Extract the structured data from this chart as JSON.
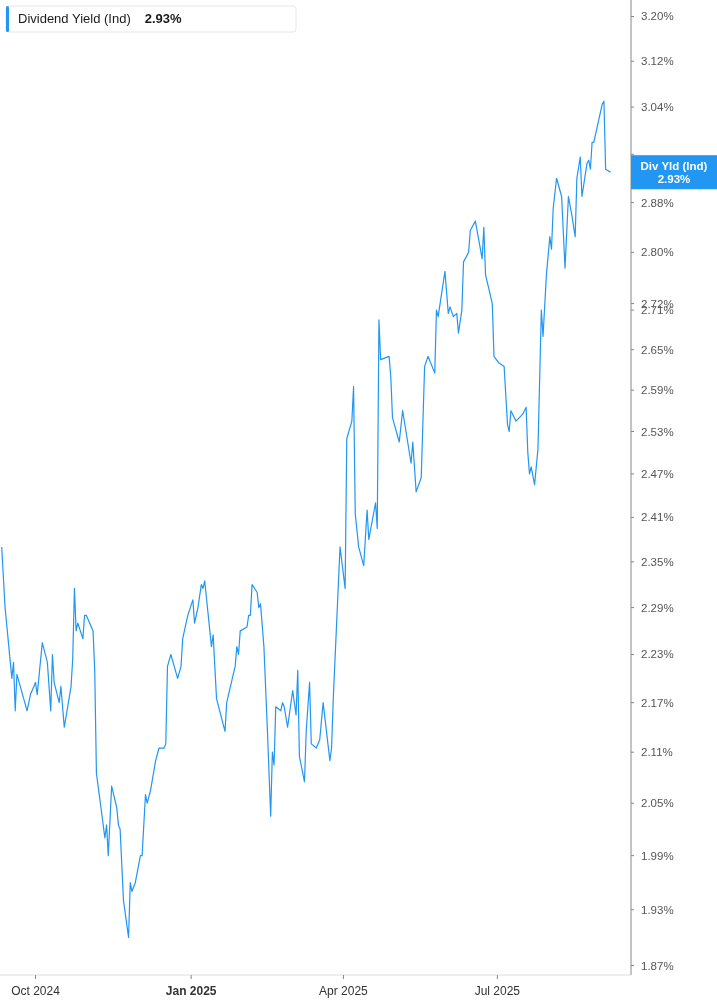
{
  "chart_data": {
    "type": "line",
    "log": true,
    "legend": "top left",
    "marker": "none",
    "line_style": "solid",
    "grid": false,
    "xlim": [
      "2024-09-10",
      "2025-09-18"
    ],
    "xticks": [
      {
        "value": "2024-10-01",
        "label": "Oct 2024"
      },
      {
        "value": "2025-01-01",
        "label": "Jan 2025"
      },
      {
        "value": "2025-04-01",
        "label": "Apr 2025"
      },
      {
        "value": "2025-07-01",
        "label": "Jul 2025"
      }
    ],
    "ylim": [
      1.86,
      3.23
    ],
    "yticks": [
      {
        "value": 3.2,
        "label": "3.20%"
      },
      {
        "value": 3.12,
        "label": "3.12%"
      },
      {
        "value": 3.04,
        "label": "3.04%"
      },
      {
        "value": 2.96,
        "label": null
      },
      {
        "value": 2.88,
        "label": "2.88%"
      },
      {
        "value": 2.8,
        "label": "2.80%"
      },
      {
        "value": 2.72,
        "label": "2.72%"
      },
      {
        "value": 2.71,
        "label": "2.71%"
      },
      {
        "value": 2.65,
        "label": "2.65%"
      },
      {
        "value": 2.59,
        "label": "2.59%"
      },
      {
        "value": 2.53,
        "label": "2.53%"
      },
      {
        "value": 2.47,
        "label": "2.47%"
      },
      {
        "value": 2.41,
        "label": "2.41%"
      },
      {
        "value": 2.35,
        "label": "2.35%"
      },
      {
        "value": 2.29,
        "label": "2.29%"
      },
      {
        "value": 2.23,
        "label": "2.23%"
      },
      {
        "value": 2.17,
        "label": "2.17%"
      },
      {
        "value": 2.11,
        "label": "2.11%"
      },
      {
        "value": 2.05,
        "label": "2.05%"
      },
      {
        "value": 1.99,
        "label": "1.99%"
      },
      {
        "value": 1.93,
        "label": "1.93%"
      },
      {
        "value": 1.87,
        "label": "1.87%"
      }
    ],
    "annotations": [
      "2.93%",
      "Div Yld (Ind)",
      "2.93%"
    ],
    "series": [
      {
        "name": "Dividend Yield (Ind)",
        "color": "#2196f3",
        "x": [
          "2024-09-11",
          "2024-09-13",
          "2024-09-17",
          "2024-09-18",
          "2024-09-19",
          "2024-09-20",
          "2024-09-24",
          "2024-09-26",
          "2024-09-28",
          "2024-10-01",
          "2024-10-02",
          "2024-10-05",
          "2024-10-08",
          "2024-10-10",
          "2024-10-11",
          "2024-10-12",
          "2024-10-15",
          "2024-10-16",
          "2024-10-18",
          "2024-10-22",
          "2024-10-23",
          "2024-10-24",
          "2024-10-25",
          "2024-10-26",
          "2024-10-29",
          "2024-10-30",
          "2024-10-31",
          "2024-11-04",
          "2024-11-05",
          "2024-11-06",
          "2024-11-08",
          "2024-11-11",
          "2024-11-12",
          "2024-11-13",
          "2024-11-15",
          "2024-11-18",
          "2024-11-19",
          "2024-11-20",
          "2024-11-22",
          "2024-11-25",
          "2024-11-26",
          "2024-11-27",
          "2024-11-29",
          "2024-12-02",
          "2024-12-03",
          "2024-12-05",
          "2024-12-06",
          "2024-12-08",
          "2024-12-11",
          "2024-12-13",
          "2024-12-16",
          "2024-12-17",
          "2024-12-18",
          "2024-12-20",
          "2024-12-22",
          "2024-12-24",
          "2024-12-26",
          "2024-12-27",
          "2024-12-30",
          "2025-01-02",
          "2025-01-03",
          "2025-01-05",
          "2025-01-07",
          "2025-01-08",
          "2025-01-09",
          "2025-01-13",
          "2025-01-14",
          "2025-01-16",
          "2025-01-21",
          "2025-01-22",
          "2025-01-27",
          "2025-01-28",
          "2025-01-29",
          "2025-01-30",
          "2025-02-03",
          "2025-02-04",
          "2025-02-05",
          "2025-02-06",
          "2025-02-09",
          "2025-02-10",
          "2025-02-11",
          "2025-02-13",
          "2025-02-15",
          "2025-02-17",
          "2025-02-18",
          "2025-02-19",
          "2025-02-20",
          "2025-02-23",
          "2025-02-24",
          "2025-02-25",
          "2025-02-27",
          "2025-03-02",
          "2025-03-04",
          "2025-03-05",
          "2025-03-06",
          "2025-03-09",
          "2025-03-10",
          "2025-03-12",
          "2025-03-13",
          "2025-03-16",
          "2025-03-18",
          "2025-03-20",
          "2025-03-24",
          "2025-03-25",
          "2025-03-26",
          "2025-03-30",
          "2025-04-02",
          "2025-04-03",
          "2025-04-06",
          "2025-04-07",
          "2025-04-08",
          "2025-04-10",
          "2025-04-13",
          "2025-04-15",
          "2025-04-16",
          "2025-04-20",
          "2025-04-21",
          "2025-04-22",
          "2025-04-23",
          "2025-04-28",
          "2025-04-29",
          "2025-04-30",
          "2025-05-04",
          "2025-05-06",
          "2025-05-08",
          "2025-05-11",
          "2025-05-12",
          "2025-05-14",
          "2025-05-17",
          "2025-05-19",
          "2025-05-21",
          "2025-05-25",
          "2025-05-26",
          "2025-05-27",
          "2025-05-31",
          "2025-06-02",
          "2025-06-03",
          "2025-06-05",
          "2025-06-07",
          "2025-06-08",
          "2025-06-10",
          "2025-06-11",
          "2025-06-14",
          "2025-06-15",
          "2025-06-18",
          "2025-06-22",
          "2025-06-23",
          "2025-06-24",
          "2025-06-28",
          "2025-06-29",
          "2025-07-02",
          "2025-07-05",
          "2025-07-07",
          "2025-07-08",
          "2025-07-09",
          "2025-07-12",
          "2025-07-14",
          "2025-07-16",
          "2025-07-18",
          "2025-07-19",
          "2025-07-20",
          "2025-07-21",
          "2025-07-23",
          "2025-07-25",
          "2025-07-27",
          "2025-07-28",
          "2025-07-30",
          "2025-08-01",
          "2025-08-02",
          "2025-08-03",
          "2025-08-05",
          "2025-08-08",
          "2025-08-10",
          "2025-08-12",
          "2025-08-14",
          "2025-08-16",
          "2025-08-17",
          "2025-08-19",
          "2025-08-20",
          "2025-08-23",
          "2025-08-24",
          "2025-08-25",
          "2025-08-26",
          "2025-08-27",
          "2025-09-01",
          "2025-09-02",
          "2025-09-03",
          "2025-09-06"
        ],
        "values": [
          2.37,
          2.29,
          2.2,
          2.22,
          2.16,
          2.205,
          2.175,
          2.16,
          2.18,
          2.195,
          2.18,
          2.245,
          2.22,
          2.16,
          2.23,
          2.195,
          2.17,
          2.19,
          2.14,
          2.19,
          2.225,
          2.315,
          2.26,
          2.27,
          2.25,
          2.28,
          2.28,
          2.26,
          2.21,
          2.085,
          2.055,
          2.01,
          2.025,
          1.99,
          2.07,
          2.045,
          2.025,
          2.02,
          1.94,
          1.9,
          1.96,
          1.95,
          1.96,
          1.99,
          1.99,
          2.06,
          2.05,
          2.065,
          2.1,
          2.115,
          2.115,
          2.12,
          2.215,
          2.23,
          2.215,
          2.2,
          2.215,
          2.25,
          2.28,
          2.3,
          2.27,
          2.29,
          2.32,
          2.315,
          2.325,
          2.24,
          2.255,
          2.175,
          2.135,
          2.17,
          2.215,
          2.24,
          2.23,
          2.26,
          2.265,
          2.28,
          2.28,
          2.32,
          2.31,
          2.29,
          2.295,
          2.24,
          2.14,
          2.035,
          2.11,
          2.095,
          2.165,
          2.16,
          2.17,
          2.165,
          2.14,
          2.185,
          2.155,
          2.21,
          2.105,
          2.075,
          2.135,
          2.195,
          2.12,
          2.115,
          2.125,
          2.17,
          2.1,
          2.115,
          2.175,
          2.37,
          2.315,
          2.52,
          2.545,
          2.595,
          2.415,
          2.37,
          2.345,
          2.42,
          2.38,
          2.43,
          2.395,
          2.695,
          2.635,
          2.64,
          2.61,
          2.55,
          2.515,
          2.56,
          2.53,
          2.485,
          2.515,
          2.445,
          2.465,
          2.625,
          2.64,
          2.615,
          2.71,
          2.7,
          2.77,
          2.705,
          2.715,
          2.7,
          2.705,
          2.675,
          2.71,
          2.785,
          2.8,
          2.835,
          2.85,
          2.79,
          2.84,
          2.765,
          2.72,
          2.64,
          2.63,
          2.625,
          2.54,
          2.53,
          2.56,
          2.545,
          2.55,
          2.555,
          2.565,
          2.5,
          2.47,
          2.48,
          2.455,
          2.505,
          2.71,
          2.67,
          2.765,
          2.825,
          2.805,
          2.87,
          2.92,
          2.89,
          2.775,
          2.89,
          2.86,
          2.825,
          2.92,
          2.955,
          2.89,
          2.945,
          2.95,
          2.935,
          2.98,
          2.98,
          3.045,
          3.05,
          2.935,
          2.93
        ]
      }
    ]
  }
}
